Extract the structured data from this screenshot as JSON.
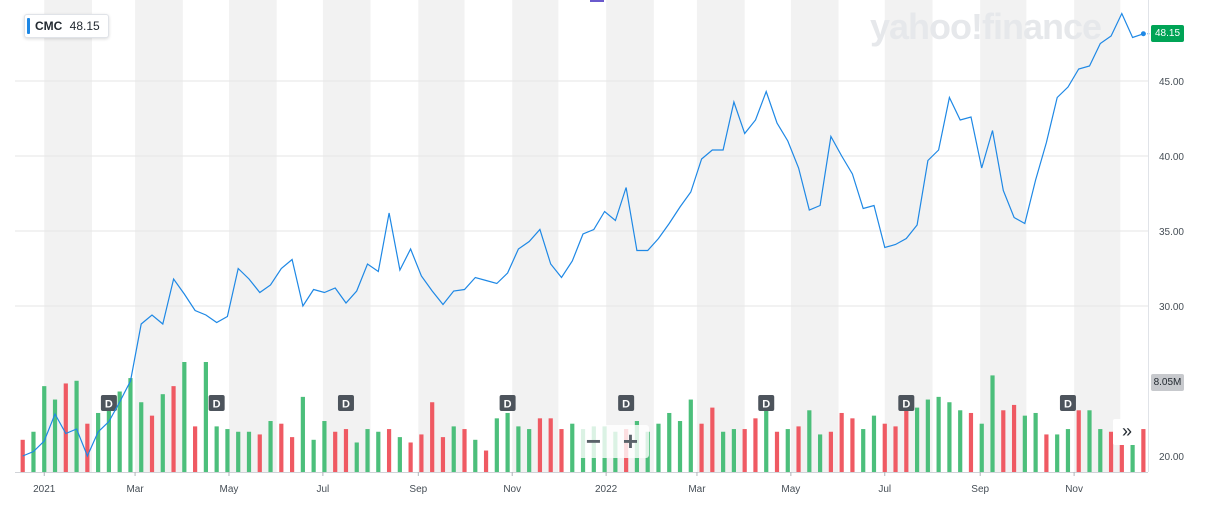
{
  "legend": {
    "symbol": "CMC",
    "value": "48.15"
  },
  "watermark": "yahoo!finance",
  "price_tag": "48.15",
  "volume_tag": "8.05M",
  "zoom": {
    "minus_label": "−",
    "plus_label": "+"
  },
  "nav_next_label": "»",
  "colors": {
    "line": "#1e88e5",
    "volume_up": "#4cbf7b",
    "volume_down": "#ef5a63",
    "price_tag_bg": "#00a456",
    "band": "#f2f2f2",
    "dividend_marker": "#4d545c"
  },
  "chart_data": {
    "type": "line",
    "title": "",
    "series": [
      {
        "name": "CMC",
        "x": [
          "2020-12-18",
          "2020-12-25",
          "2021-01-01",
          "2021-01-08",
          "2021-01-15",
          "2021-01-22",
          "2021-01-29",
          "2021-02-05",
          "2021-02-12",
          "2021-02-19",
          "2021-02-26",
          "2021-03-05",
          "2021-03-12",
          "2021-03-19",
          "2021-03-26",
          "2021-04-02",
          "2021-04-09",
          "2021-04-16",
          "2021-04-23",
          "2021-04-30",
          "2021-05-07",
          "2021-05-14",
          "2021-05-21",
          "2021-05-28",
          "2021-06-04",
          "2021-06-11",
          "2021-06-18",
          "2021-06-25",
          "2021-07-02",
          "2021-07-09",
          "2021-07-16",
          "2021-07-23",
          "2021-07-30",
          "2021-08-06",
          "2021-08-13",
          "2021-08-20",
          "2021-08-27",
          "2021-09-03",
          "2021-09-10",
          "2021-09-17",
          "2021-09-24",
          "2021-10-01",
          "2021-10-08",
          "2021-10-15",
          "2021-10-22",
          "2021-10-29",
          "2021-11-05",
          "2021-11-12",
          "2021-11-19",
          "2021-11-26",
          "2021-12-03",
          "2021-12-10",
          "2021-12-17",
          "2021-12-24",
          "2021-12-31",
          "2022-01-07",
          "2022-01-14",
          "2022-01-21",
          "2022-01-28",
          "2022-02-04",
          "2022-02-11",
          "2022-02-18",
          "2022-02-25",
          "2022-03-04",
          "2022-03-11",
          "2022-03-18",
          "2022-03-25",
          "2022-04-01",
          "2022-04-08",
          "2022-04-15",
          "2022-04-22",
          "2022-04-29",
          "2022-05-06",
          "2022-05-13",
          "2022-05-20",
          "2022-05-27",
          "2022-06-03",
          "2022-06-10",
          "2022-06-17",
          "2022-06-24",
          "2022-07-01",
          "2022-07-08",
          "2022-07-15",
          "2022-07-22",
          "2022-07-29",
          "2022-08-05",
          "2022-08-12",
          "2022-08-19",
          "2022-08-26",
          "2022-09-02",
          "2022-09-09",
          "2022-09-16",
          "2022-09-23",
          "2022-09-30",
          "2022-10-07",
          "2022-10-14",
          "2022-10-21",
          "2022-10-28",
          "2022-11-04",
          "2022-11-11",
          "2022-11-18",
          "2022-11-25",
          "2022-12-02",
          "2022-12-09",
          "2022-12-16"
        ],
        "values": [
          20.0,
          20.3,
          21.0,
          22.8,
          21.5,
          21.8,
          20.0,
          21.6,
          22.3,
          23.6,
          25.0,
          28.8,
          29.4,
          28.8,
          31.8,
          30.8,
          29.7,
          29.4,
          28.9,
          29.3,
          32.5,
          31.8,
          30.9,
          31.4,
          32.5,
          33.1,
          30.0,
          31.1,
          30.9,
          31.2,
          30.2,
          31.0,
          32.8,
          32.3,
          36.2,
          32.4,
          33.8,
          32.0,
          31.0,
          30.1,
          31.0,
          31.1,
          31.9,
          31.7,
          31.5,
          32.2,
          33.8,
          34.3,
          35.1,
          32.8,
          31.9,
          33.0,
          34.8,
          35.1,
          36.3,
          35.7,
          37.9,
          33.7,
          33.7,
          34.5,
          35.5,
          36.6,
          37.6,
          39.8,
          40.4,
          40.4,
          43.6,
          41.5,
          42.4,
          44.3,
          42.2,
          41.0,
          39.2,
          36.4,
          36.7,
          41.3,
          40.0,
          38.8,
          36.5,
          36.7,
          33.9,
          34.1,
          34.5,
          35.4,
          39.7,
          40.4,
          43.9,
          42.4,
          42.6,
          39.2,
          41.7,
          37.7,
          35.9,
          35.5,
          38.4,
          40.9,
          43.9,
          44.6,
          45.8,
          46.0,
          47.5,
          48.0,
          49.5,
          47.9,
          48.15
        ]
      }
    ],
    "volume": {
      "values": [
        1.2,
        1.5,
        3.2,
        2.7,
        3.3,
        3.4,
        1.8,
        2.2,
        2.3,
        3.0,
        3.5,
        2.6,
        2.1,
        2.9,
        3.2,
        4.5,
        1.7,
        4.6,
        1.7,
        1.6,
        1.5,
        1.5,
        1.4,
        1.9,
        1.8,
        1.3,
        2.8,
        1.2,
        1.9,
        1.5,
        1.6,
        1.1,
        1.6,
        1.5,
        1.6,
        1.3,
        1.1,
        1.4,
        2.6,
        1.3,
        1.7,
        1.6,
        1.2,
        0.8,
        2.0,
        2.2,
        1.7,
        1.6,
        2.0,
        2.0,
        1.6,
        1.8,
        1.6,
        1.7,
        1.7,
        1.5,
        1.6,
        1.9,
        1.5,
        1.8,
        2.2,
        1.9,
        2.7,
        1.8,
        2.4,
        1.5,
        1.6,
        1.6,
        2.0,
        2.5,
        1.5,
        1.6,
        1.7,
        2.3,
        1.4,
        1.5,
        2.2,
        2.0,
        1.6,
        2.1,
        1.8,
        1.7,
        2.6,
        2.4,
        2.7,
        2.8,
        2.6,
        2.3,
        2.2,
        1.8,
        3.6,
        2.3,
        2.5,
        2.1,
        2.2,
        1.4,
        1.4,
        1.6,
        2.3,
        2.3,
        1.6,
        1.5,
        1.5,
        1.5,
        1.6
      ],
      "up": [
        false,
        true,
        true,
        true,
        false,
        true,
        false,
        true,
        true,
        true,
        true,
        true,
        false,
        true,
        false,
        true,
        false,
        true,
        true,
        true,
        true,
        true,
        false,
        true,
        false,
        false,
        true,
        true,
        true,
        false,
        false,
        true,
        true,
        true,
        false,
        true,
        false,
        false,
        false,
        false,
        true,
        false,
        true,
        false,
        true,
        true,
        true,
        true,
        false,
        false,
        false,
        true,
        true,
        true,
        true,
        true,
        false,
        true,
        true,
        true,
        true,
        true,
        true,
        false,
        false,
        true,
        true,
        false,
        false,
        true,
        false,
        true,
        false,
        true,
        true,
        false,
        false,
        false,
        true,
        true,
        false,
        false,
        false,
        true,
        true,
        true,
        true,
        true,
        false,
        true,
        true,
        false,
        false,
        true,
        true,
        false,
        true,
        true,
        false,
        true,
        true,
        false,
        false,
        true,
        false
      ]
    },
    "dividends": [
      "2021-02-12",
      "2021-04-23",
      "2021-07-16",
      "2021-10-29",
      "2022-01-14",
      "2022-04-15",
      "2022-07-15",
      "2022-10-28"
    ],
    "x_ticks": [
      "2021",
      "Mar",
      "May",
      "Jul",
      "Sep",
      "Nov",
      "2022",
      "Mar",
      "May",
      "Jul",
      "Sep",
      "Nov"
    ],
    "y_ticks": [
      "20.00",
      "30.00",
      "35.00",
      "40.00",
      "45.00"
    ],
    "ylim": [
      18.5,
      50.5
    ],
    "grid": true,
    "legend_position": "top-left"
  }
}
